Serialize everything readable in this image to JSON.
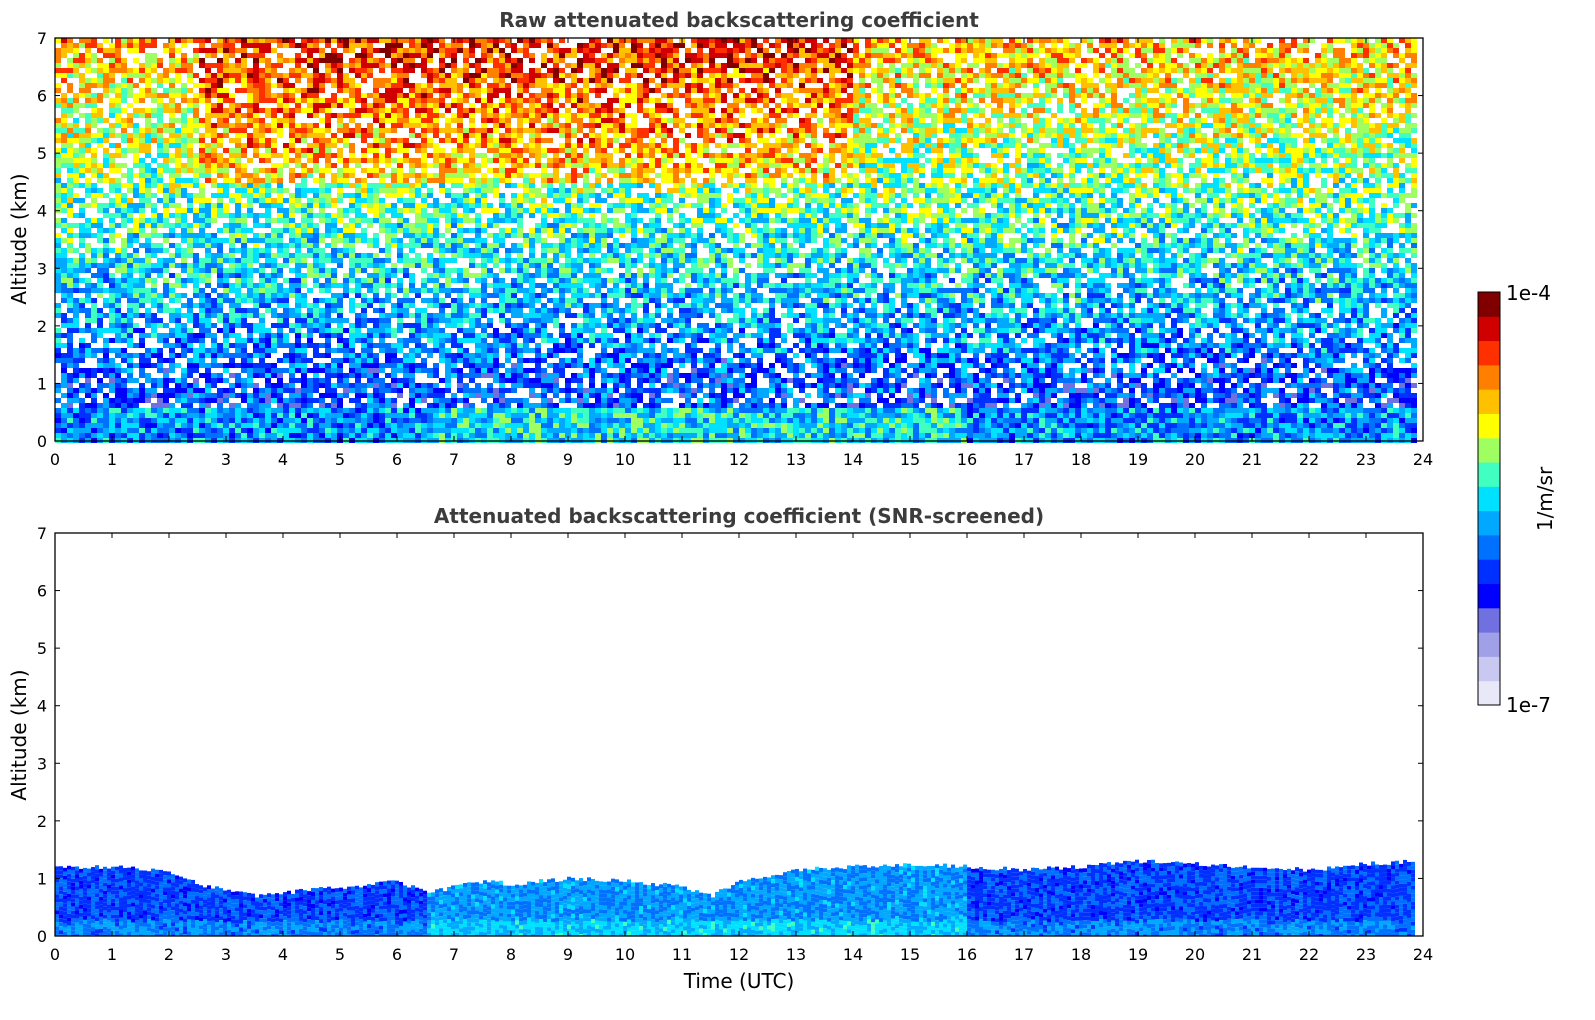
{
  "chart_data": [
    {
      "type": "heatmap",
      "title": "Raw attenuated backscattering coefficient",
      "xlabel": "",
      "ylabel": "Altitude (km)",
      "xlim": [
        0,
        24
      ],
      "ylim": [
        0,
        7
      ],
      "x_ticks": [
        0,
        1,
        2,
        3,
        4,
        5,
        6,
        7,
        8,
        9,
        10,
        11,
        12,
        13,
        14,
        15,
        16,
        17,
        18,
        19,
        20,
        21,
        22,
        23,
        24
      ],
      "y_ticks": [
        0,
        1,
        2,
        3,
        4,
        5,
        6,
        7
      ],
      "data_x_end": 23.8,
      "description_levels": [
        {
          "altitude_range_km": [
            0,
            0.6
          ],
          "level": "low (blue to cyan)"
        },
        {
          "altitude_range_km": [
            0.6,
            2
          ],
          "level": "noisy blue"
        },
        {
          "altitude_range_km": [
            2,
            4
          ],
          "level": "noisy cyan/green"
        },
        {
          "altitude_range_km": [
            4,
            7
          ],
          "level": "noisy yellow/orange, red streaks 3-14 UTC"
        }
      ]
    },
    {
      "type": "heatmap",
      "title": "Attenuated backscattering coefficient (SNR-screened)",
      "xlabel": "Time (UTC)",
      "ylabel": "Altitude (km)",
      "xlim": [
        0,
        24
      ],
      "ylim": [
        0,
        7
      ],
      "x_ticks": [
        0,
        1,
        2,
        3,
        4,
        5,
        6,
        7,
        8,
        9,
        10,
        11,
        12,
        13,
        14,
        15,
        16,
        17,
        18,
        19,
        20,
        21,
        22,
        23,
        24
      ],
      "y_ticks": [
        0,
        1,
        2,
        3,
        4,
        5,
        6,
        7
      ],
      "data_x_end": 23.8,
      "boundary_layer_top_km": {
        "x": [
          0,
          1,
          2,
          2.5,
          3,
          3.5,
          4,
          5,
          6,
          6.5,
          7,
          7.5,
          8,
          9,
          10,
          11,
          11.5,
          12,
          13,
          14,
          15,
          16,
          17,
          18,
          19,
          20,
          21,
          22,
          23,
          23.8
        ],
        "y": [
          1.2,
          1.2,
          1.1,
          0.9,
          0.8,
          0.7,
          0.75,
          0.85,
          0.95,
          0.75,
          0.85,
          0.95,
          0.9,
          1.0,
          0.95,
          0.85,
          0.7,
          0.95,
          1.15,
          1.2,
          1.25,
          1.2,
          1.15,
          1.2,
          1.3,
          1.25,
          1.2,
          1.15,
          1.25,
          1.3
        ]
      }
    }
  ],
  "colorbar": {
    "label": "1/m/sr",
    "max_label": "1e-4",
    "min_label": "1e-7",
    "colors": [
      "#e8e8f8",
      "#c8c8f0",
      "#a0a0e8",
      "#7070e0",
      "#0000ff",
      "#0030ff",
      "#0070ff",
      "#00a8ff",
      "#00e0ff",
      "#40ffc0",
      "#a0ff60",
      "#ffff00",
      "#ffc000",
      "#ff8000",
      "#ff3000",
      "#d00000",
      "#800000"
    ]
  }
}
